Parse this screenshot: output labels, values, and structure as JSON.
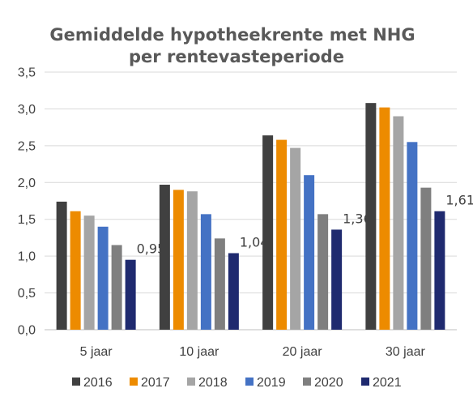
{
  "chart_data": {
    "type": "bar",
    "title_line1": "Gemiddelde hypotheekrente met NHG",
    "title_line2": "per rentevasteperiode",
    "categories": [
      "5 jaar",
      "10 jaar",
      "20 jaar",
      "30 jaar"
    ],
    "y_ticks": [
      "0,0",
      "0,5",
      "1,0",
      "1,5",
      "2,0",
      "2,5",
      "3,0",
      "3,5"
    ],
    "ylim": [
      0,
      3.5
    ],
    "grid": true,
    "legend_position": "bottom",
    "series": [
      {
        "name": "2016",
        "color": "#404040",
        "values": [
          1.74,
          1.97,
          2.64,
          3.08
        ]
      },
      {
        "name": "2017",
        "color": "#ed8b00",
        "values": [
          1.61,
          1.9,
          2.58,
          3.02
        ]
      },
      {
        "name": "2018",
        "color": "#a5a5a5",
        "values": [
          1.55,
          1.88,
          2.47,
          2.9
        ]
      },
      {
        "name": "2019",
        "color": "#4472c4",
        "values": [
          1.4,
          1.57,
          2.1,
          2.55
        ]
      },
      {
        "name": "2020",
        "color": "#7f7f7f",
        "values": [
          1.15,
          1.24,
          1.57,
          1.93
        ]
      },
      {
        "name": "2021",
        "color": "#1f2a6f",
        "values": [
          0.95,
          1.04,
          1.36,
          1.61
        ]
      }
    ],
    "data_labels": {
      "series": "2021",
      "labels": [
        "0,95",
        "1,04",
        "1,36",
        "1,61"
      ]
    }
  }
}
